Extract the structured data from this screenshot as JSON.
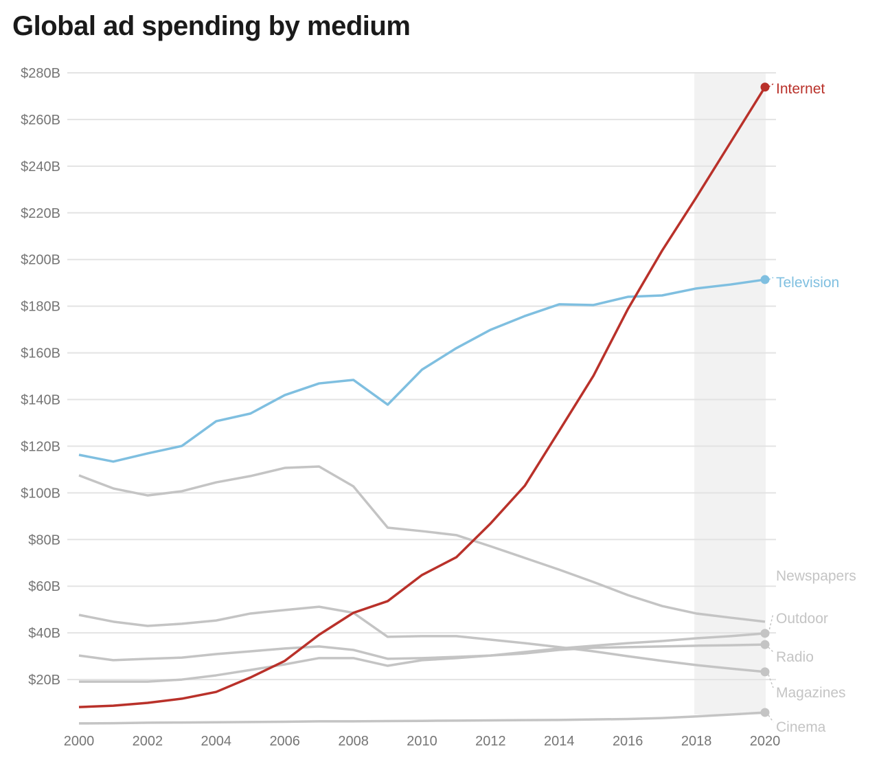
{
  "chart_data": {
    "type": "line",
    "title": "Global ad spending by medium",
    "xlabel": "",
    "ylabel": "",
    "x": [
      2000,
      2001,
      2002,
      2003,
      2004,
      2005,
      2006,
      2007,
      2008,
      2009,
      2010,
      2011,
      2012,
      2013,
      2014,
      2015,
      2016,
      2017,
      2018,
      2019,
      2020
    ],
    "xticks": [
      "2000",
      "2002",
      "2004",
      "2006",
      "2008",
      "2010",
      "2012",
      "2014",
      "2016",
      "2018",
      "2020"
    ],
    "yticks": [
      "$20B",
      "$40B",
      "$60B",
      "$80B",
      "$100B",
      "$120B",
      "$140B",
      "$160B",
      "$180B",
      "$200B",
      "$220B",
      "$240B",
      "$260B",
      "$280B"
    ],
    "ytick_values": [
      20,
      40,
      60,
      80,
      100,
      120,
      140,
      160,
      180,
      200,
      220,
      240,
      260,
      280
    ],
    "ylim": [
      0,
      280
    ],
    "xlim": [
      2000,
      2020
    ],
    "unit": "billion USD",
    "grid": true,
    "highlight_band": {
      "from": 2018,
      "to": 2020,
      "color": "#f2f2f2"
    },
    "series": [
      {
        "name": "Newspapers",
        "color": "#c4c4c4",
        "label": "Newspapers",
        "endpoint_marker": false,
        "values": [
          107.5,
          101.9,
          98.9,
          100.7,
          104.5,
          107.2,
          110.7,
          111.3,
          102.8,
          85.1,
          83.6,
          81.9,
          77.1,
          72.1,
          67.1,
          61.8,
          56.2,
          51.5,
          48.3,
          46.5,
          44.8
        ]
      },
      {
        "name": "Outdoor",
        "color": "#c4c4c4",
        "label": "Outdoor",
        "endpoint_marker": true,
        "values": [
          19.1,
          19.1,
          19.1,
          20.0,
          21.8,
          24.1,
          26.5,
          29.2,
          29.2,
          25.9,
          28.3,
          29.2,
          30.3,
          31.8,
          33.3,
          34.5,
          35.6,
          36.5,
          37.7,
          38.6,
          39.8
        ]
      },
      {
        "name": "Radio",
        "color": "#c4c4c4",
        "label": "Radio",
        "endpoint_marker": true,
        "values": [
          30.3,
          28.3,
          28.9,
          29.4,
          30.9,
          32.1,
          33.3,
          34.2,
          32.7,
          28.9,
          29.2,
          29.7,
          30.3,
          31.2,
          32.7,
          33.6,
          33.9,
          34.2,
          34.5,
          34.7,
          35.0
        ]
      },
      {
        "name": "Magazines",
        "color": "#c4c4c4",
        "label": "Magazines",
        "endpoint_marker": true,
        "values": [
          47.7,
          44.8,
          43.0,
          43.9,
          45.3,
          48.3,
          49.8,
          51.2,
          48.6,
          38.3,
          38.6,
          38.6,
          37.1,
          35.6,
          33.9,
          32.1,
          30.0,
          28.0,
          26.2,
          24.7,
          23.3
        ]
      },
      {
        "name": "Cinema",
        "color": "#c4c4c4",
        "label": "Cinema",
        "endpoint_marker": true,
        "values": [
          1.2,
          1.3,
          1.5,
          1.6,
          1.7,
          1.8,
          1.9,
          2.1,
          2.1,
          2.2,
          2.3,
          2.4,
          2.5,
          2.6,
          2.7,
          2.9,
          3.1,
          3.5,
          4.2,
          5.0,
          5.9
        ]
      },
      {
        "name": "Television",
        "color": "#7fbfe0",
        "label": "Television",
        "endpoint_marker": true,
        "values": [
          116.3,
          113.4,
          116.9,
          120.1,
          130.7,
          134.0,
          141.9,
          146.9,
          148.4,
          137.8,
          152.8,
          162.0,
          169.9,
          175.8,
          180.8,
          180.5,
          184.0,
          184.6,
          187.6,
          189.3,
          191.4
        ]
      },
      {
        "name": "Internet",
        "color": "#b9312a",
        "label": "Internet",
        "endpoint_marker": true,
        "values": [
          8.2,
          8.8,
          10.0,
          11.8,
          14.7,
          20.9,
          28.0,
          39.2,
          48.6,
          53.6,
          64.8,
          72.4,
          86.9,
          103.1,
          126.6,
          150.2,
          178.7,
          203.8,
          226.7,
          250.3,
          273.9
        ]
      }
    ]
  }
}
